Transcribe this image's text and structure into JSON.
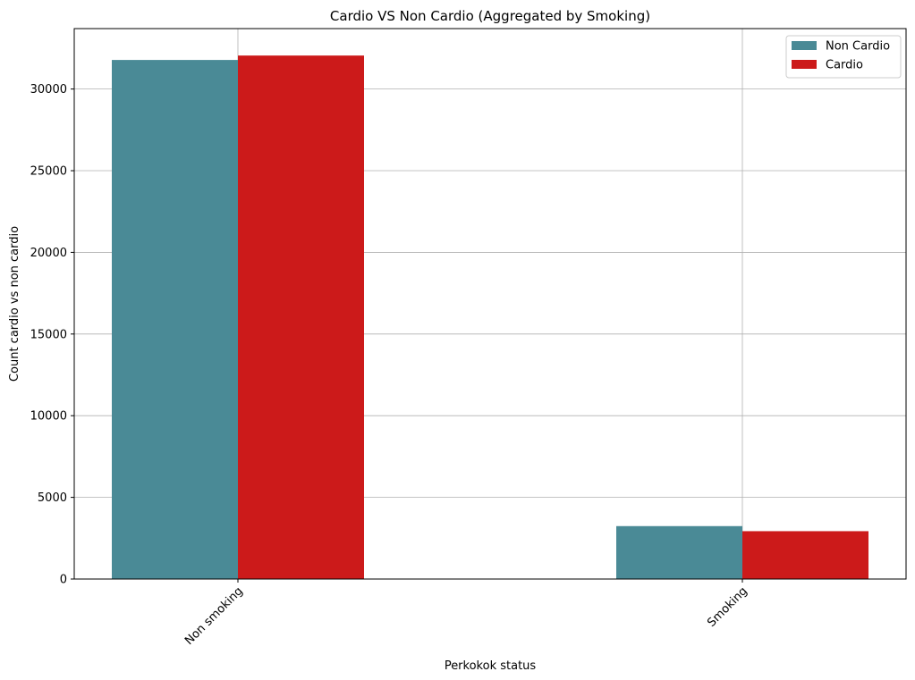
{
  "chart_data": {
    "type": "bar",
    "title": "Cardio VS Non Cardio  (Aggregated by Smoking)",
    "xlabel": "Perkokok status",
    "ylabel": "Count cardio vs non cardio",
    "categories": [
      "Non smoking",
      "Smoking"
    ],
    "series": [
      {
        "name": "Non Cardio",
        "color": "#4a8a96",
        "values": [
          31780,
          3240
        ]
      },
      {
        "name": "Cardio",
        "color": "#cc1a1a",
        "values": [
          32050,
          2930
        ]
      }
    ],
    "ylim": [
      0,
      33700
    ],
    "yticks": [
      0,
      5000,
      10000,
      15000,
      20000,
      25000,
      30000
    ],
    "ytick_labels": [
      "0",
      "5000",
      "10000",
      "15000",
      "20000",
      "25000",
      "30000"
    ],
    "grid": true,
    "legend_position": "top-right",
    "xtick_rotation": 45
  }
}
